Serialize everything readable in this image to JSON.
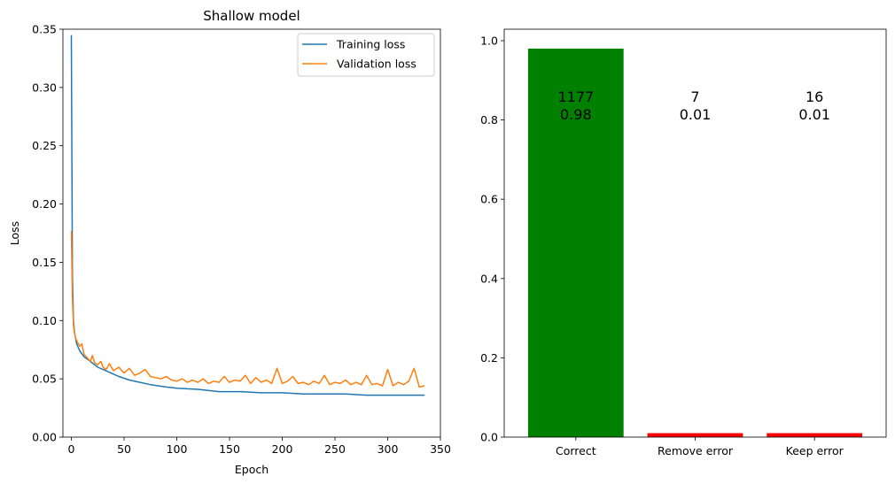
{
  "chart_data": [
    {
      "type": "line",
      "title": "Shallow model",
      "xlabel": "Epoch",
      "ylabel": "Loss",
      "xlim": [
        -8,
        350
      ],
      "ylim": [
        0,
        0.35
      ],
      "x_ticks": [
        0,
        50,
        100,
        150,
        200,
        250,
        300,
        350
      ],
      "y_ticks": [
        0.0,
        0.05,
        0.1,
        0.15,
        0.2,
        0.25,
        0.3,
        0.35
      ],
      "x_tick_labels": [
        "0",
        "50",
        "100",
        "150",
        "200",
        "250",
        "300",
        "350"
      ],
      "y_tick_labels": [
        "0.00",
        "0.05",
        "0.10",
        "0.15",
        "0.20",
        "0.25",
        "0.30",
        "0.35"
      ],
      "grid": false,
      "legend_position": "top-right",
      "series": [
        {
          "name": "Training loss",
          "color": "#1f77b4",
          "points": [
            [
              0,
              0.345
            ],
            [
              1,
              0.14
            ],
            [
              2,
              0.1
            ],
            [
              3,
              0.09
            ],
            [
              5,
              0.08
            ],
            [
              8,
              0.074
            ],
            [
              12,
              0.069
            ],
            [
              18,
              0.065
            ],
            [
              25,
              0.06
            ],
            [
              35,
              0.056
            ],
            [
              45,
              0.052
            ],
            [
              55,
              0.049
            ],
            [
              65,
              0.047
            ],
            [
              75,
              0.045
            ],
            [
              90,
              0.043
            ],
            [
              100,
              0.042
            ],
            [
              120,
              0.041
            ],
            [
              140,
              0.039
            ],
            [
              160,
              0.039
            ],
            [
              180,
              0.038
            ],
            [
              200,
              0.038
            ],
            [
              220,
              0.037
            ],
            [
              240,
              0.037
            ],
            [
              260,
              0.037
            ],
            [
              280,
              0.036
            ],
            [
              300,
              0.036
            ],
            [
              320,
              0.036
            ],
            [
              335,
              0.036
            ]
          ]
        },
        {
          "name": "Validation loss",
          "color": "#ff7f0e",
          "points": [
            [
              0,
              0.177
            ],
            [
              1,
              0.12
            ],
            [
              2,
              0.096
            ],
            [
              3,
              0.089
            ],
            [
              4,
              0.085
            ],
            [
              6,
              0.081
            ],
            [
              8,
              0.078
            ],
            [
              10,
              0.08
            ],
            [
              12,
              0.071
            ],
            [
              15,
              0.068
            ],
            [
              18,
              0.065
            ],
            [
              20,
              0.07
            ],
            [
              22,
              0.064
            ],
            [
              25,
              0.062
            ],
            [
              28,
              0.065
            ],
            [
              30,
              0.06
            ],
            [
              33,
              0.058
            ],
            [
              36,
              0.063
            ],
            [
              40,
              0.057
            ],
            [
              45,
              0.06
            ],
            [
              50,
              0.055
            ],
            [
              55,
              0.059
            ],
            [
              60,
              0.053
            ],
            [
              65,
              0.055
            ],
            [
              70,
              0.058
            ],
            [
              75,
              0.052
            ],
            [
              80,
              0.051
            ],
            [
              85,
              0.05
            ],
            [
              90,
              0.052
            ],
            [
              95,
              0.049
            ],
            [
              100,
              0.048
            ],
            [
              105,
              0.05
            ],
            [
              110,
              0.047
            ],
            [
              115,
              0.049
            ],
            [
              120,
              0.047
            ],
            [
              125,
              0.05
            ],
            [
              130,
              0.046
            ],
            [
              135,
              0.048
            ],
            [
              140,
              0.047
            ],
            [
              145,
              0.052
            ],
            [
              150,
              0.047
            ],
            [
              155,
              0.049
            ],
            [
              160,
              0.048
            ],
            [
              165,
              0.053
            ],
            [
              170,
              0.046
            ],
            [
              175,
              0.051
            ],
            [
              180,
              0.047
            ],
            [
              185,
              0.049
            ],
            [
              190,
              0.046
            ],
            [
              195,
              0.059
            ],
            [
              200,
              0.046
            ],
            [
              205,
              0.048
            ],
            [
              210,
              0.052
            ],
            [
              215,
              0.046
            ],
            [
              220,
              0.047
            ],
            [
              225,
              0.045
            ],
            [
              230,
              0.048
            ],
            [
              235,
              0.046
            ],
            [
              240,
              0.053
            ],
            [
              245,
              0.045
            ],
            [
              250,
              0.047
            ],
            [
              255,
              0.046
            ],
            [
              260,
              0.049
            ],
            [
              265,
              0.045
            ],
            [
              270,
              0.047
            ],
            [
              275,
              0.045
            ],
            [
              280,
              0.053
            ],
            [
              285,
              0.045
            ],
            [
              290,
              0.046
            ],
            [
              295,
              0.044
            ],
            [
              300,
              0.058
            ],
            [
              305,
              0.044
            ],
            [
              310,
              0.047
            ],
            [
              315,
              0.045
            ],
            [
              320,
              0.048
            ],
            [
              325,
              0.059
            ],
            [
              330,
              0.043
            ],
            [
              335,
              0.044
            ]
          ]
        }
      ]
    },
    {
      "type": "bar",
      "categories": [
        "Correct",
        "Remove error",
        "Keep error"
      ],
      "values": [
        0.98,
        0.01,
        0.01
      ],
      "counts": [
        "1177",
        "7",
        "16"
      ],
      "value_labels": [
        "0.98",
        "0.01",
        "0.01"
      ],
      "colors": [
        "#008000",
        "#ff0000",
        "#ff0000"
      ],
      "ylim": [
        0,
        1.029
      ],
      "y_ticks": [
        0.0,
        0.2,
        0.4,
        0.6,
        0.8,
        1.0
      ],
      "y_tick_labels": [
        "0.0",
        "0.2",
        "0.4",
        "0.6",
        "0.8",
        "1.0"
      ],
      "title": "",
      "xlabel": "",
      "ylabel": "",
      "grid": false
    }
  ]
}
